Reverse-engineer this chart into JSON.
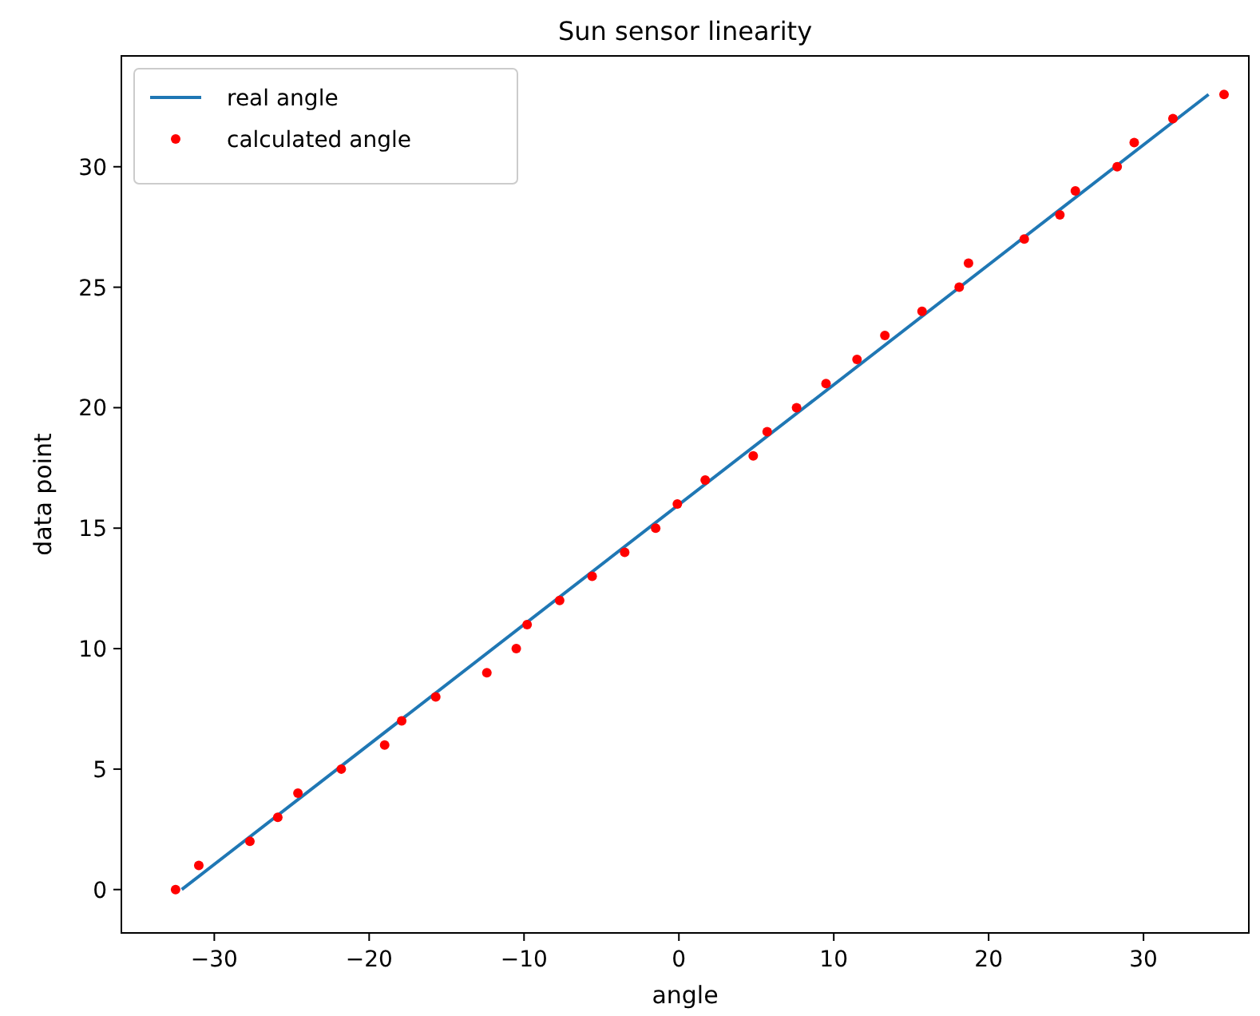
{
  "chart_data": {
    "type": "line",
    "title": "Sun sensor linearity",
    "xlabel": "angle",
    "ylabel": "data point",
    "xlim": [
      -36,
      36.8
    ],
    "ylim": [
      -1.8,
      34.6
    ],
    "xticks": [
      -30,
      -20,
      -10,
      0,
      10,
      20,
      30
    ],
    "yticks": [
      0,
      5,
      10,
      15,
      20,
      25,
      30
    ],
    "legend": "top left",
    "grid": false,
    "series": [
      {
        "name": "real angle",
        "color": "#1f77b4",
        "x": [
          -32.1,
          34.2
        ],
        "values": [
          0,
          33
        ],
        "marker": "none"
      },
      {
        "name": "calculated angle",
        "type": "scatter",
        "color": "#ff0000",
        "marker": "circle",
        "x": [
          -32.5,
          -31.0,
          -27.7,
          -25.9,
          -24.6,
          -21.8,
          -19.0,
          -17.9,
          -15.7,
          -12.4,
          -10.5,
          -9.8,
          -7.7,
          -5.6,
          -3.5,
          -1.5,
          -0.1,
          1.7,
          4.8,
          5.7,
          7.6,
          9.5,
          11.5,
          13.3,
          15.7,
          18.1,
          18.7,
          22.3,
          24.6,
          25.6,
          28.3,
          29.4,
          31.9,
          35.2
        ],
        "values": [
          0,
          1,
          2,
          3,
          4,
          5,
          6,
          7,
          8,
          9,
          10,
          11,
          12,
          13,
          14,
          15,
          16,
          17,
          18,
          19,
          20,
          21,
          22,
          23,
          24,
          25,
          26,
          27,
          28,
          29,
          30,
          31,
          32,
          33
        ]
      }
    ]
  }
}
